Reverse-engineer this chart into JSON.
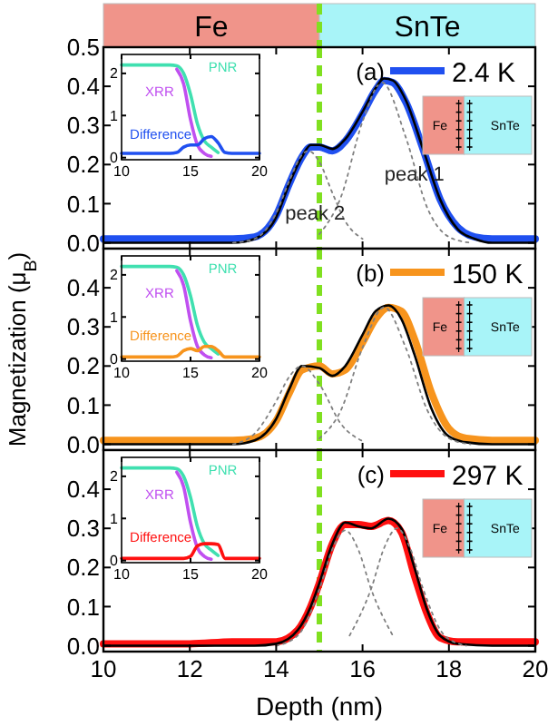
{
  "chart_data": [
    {
      "type": "other",
      "annotations": [
        "Fe",
        "SnTe"
      ]
    },
    {
      "type": "line",
      "annotations": [
        "(a)",
        "peak 1",
        "peak 2"
      ],
      "xlim": [
        10,
        20
      ],
      "xticks": [
        10,
        12,
        14,
        16,
        18,
        20
      ],
      "ylim": [
        -0.015,
        0.5
      ],
      "yticks": [
        {
          "value": 0,
          "label": "0.0"
        },
        {
          "value": 0.1,
          "label": "0.1"
        },
        {
          "value": 0.2,
          "label": "0.2"
        },
        {
          "value": 0.3,
          "label": "0.3"
        },
        {
          "value": 0.4,
          "label": "0.4"
        },
        {
          "value": 0.5,
          "label": "0.5"
        }
      ],
      "tick_labels": "y",
      "legend": "top right",
      "ref_lines": [
        {
          "axis": "x",
          "value": 15,
          "color": "#80e020",
          "line_style": "dashed"
        }
      ],
      "series": [
        {
          "name": "2.4 K",
          "color": "#2050f0",
          "x": [
            10,
            11,
            12,
            13,
            13.5,
            14,
            14.3,
            14.6,
            14.8,
            15,
            15.3,
            15.6,
            16,
            16.3,
            16.5,
            16.7,
            17,
            17.4,
            17.8,
            18.2,
            18.6,
            19,
            20
          ],
          "values": [
            0.01,
            0.01,
            0.01,
            0.01,
            0.015,
            0.07,
            0.15,
            0.22,
            0.245,
            0.245,
            0.235,
            0.26,
            0.33,
            0.39,
            0.415,
            0.41,
            0.36,
            0.24,
            0.11,
            0.04,
            0.015,
            0.01,
            0.01
          ]
        },
        {
          "color": "#000000",
          "x": [
            10,
            11,
            12,
            13,
            13.5,
            14,
            14.3,
            14.6,
            14.8,
            15,
            15.3,
            15.6,
            16,
            16.3,
            16.5,
            16.7,
            17,
            17.4,
            17.8,
            18.2,
            18.6,
            19,
            20
          ],
          "values": [
            0,
            0,
            0,
            0,
            0.01,
            0.065,
            0.15,
            0.22,
            0.25,
            0.25,
            0.24,
            0.265,
            0.335,
            0.395,
            0.42,
            0.415,
            0.365,
            0.24,
            0.11,
            0.035,
            0.01,
            0,
            0
          ]
        },
        {
          "color": "#808080",
          "line_style": "dotted",
          "x": [
            13,
            13.5,
            14,
            14.3,
            14.6,
            14.75,
            15,
            15.3,
            15.6,
            16
          ],
          "values": [
            0,
            0.01,
            0.076,
            0.157,
            0.225,
            0.235,
            0.207,
            0.128,
            0.055,
            0.01
          ]
        },
        {
          "color": "#808080",
          "line_style": "dotted",
          "x": [
            15,
            15.5,
            16,
            16.45,
            17,
            17.5,
            18,
            18.5
          ],
          "values": [
            0.022,
            0.117,
            0.31,
            0.41,
            0.27,
            0.089,
            0.015,
            0
          ]
        }
      ]
    },
    {
      "type": "line",
      "xlim": [
        10,
        20
      ],
      "xticks": [
        10,
        15,
        20
      ],
      "ylim": [
        -0.05,
        2.45
      ],
      "yticks": [
        0,
        1,
        2
      ],
      "series": [
        {
          "name": "PNR",
          "color": "#40e0b0",
          "x": [
            10,
            11,
            12,
            13,
            13.5,
            14,
            14.5,
            15,
            15.5,
            16,
            16.5,
            17
          ],
          "values": [
            2.2,
            2.2,
            2.2,
            2.2,
            2.2,
            2.18,
            2.0,
            1.5,
            0.8,
            0.4,
            0.25,
            0.12
          ]
        },
        {
          "name": "XRR",
          "color": "#c050f0",
          "x": [
            14,
            14.5,
            15,
            15.5,
            16,
            16.5
          ],
          "values": [
            2.1,
            1.75,
            0.9,
            0.3,
            0.1,
            0.03
          ]
        },
        {
          "name": "Difference",
          "color": "#2050f0",
          "x": [
            10,
            11,
            12,
            13,
            13.5,
            14,
            14.5,
            15,
            15.5,
            16,
            16.5,
            17,
            17.5,
            18,
            19,
            20
          ],
          "values": [
            0.1,
            0.1,
            0.1,
            0.1,
            0.1,
            0.12,
            0.25,
            0.3,
            0.3,
            0.45,
            0.5,
            0.35,
            0.12,
            0.1,
            0.1,
            0.1
          ]
        }
      ]
    },
    {
      "type": "other",
      "annotations": [
        "Fe",
        "SnTe"
      ]
    },
    {
      "type": "line",
      "ylabel": "Magnetization (μ$_{B}$)",
      "annotations": [
        "(b)"
      ],
      "xlim": [
        10,
        20
      ],
      "xticks": [
        10,
        12,
        14,
        16,
        18,
        20
      ],
      "ylim": [
        -0.015,
        0.5
      ],
      "yticks": [
        {
          "value": 0,
          "label": "0.0"
        },
        {
          "value": 0.1,
          "label": "0.1"
        },
        {
          "value": 0.2,
          "label": "0.2"
        },
        {
          "value": 0.3,
          "label": "0.3"
        },
        {
          "value": 0.4,
          "label": "0.4"
        }
      ],
      "tick_labels": "y",
      "legend": "top right",
      "ref_lines": [
        {
          "axis": "x",
          "value": 15,
          "color": "#80e020",
          "line_style": "dashed"
        }
      ],
      "series": [
        {
          "name": "150 K",
          "color": "#f7941d",
          "x": [
            10,
            11,
            12,
            13,
            13.5,
            14,
            14.3,
            14.6,
            15,
            15.3,
            15.6,
            16,
            16.3,
            16.6,
            16.9,
            17.2,
            17.6,
            18,
            18.4,
            19,
            20
          ],
          "values": [
            0.01,
            0.01,
            0.01,
            0.01,
            0.015,
            0.06,
            0.13,
            0.19,
            0.2,
            0.18,
            0.19,
            0.26,
            0.32,
            0.35,
            0.34,
            0.27,
            0.13,
            0.04,
            0.015,
            0.01,
            0.01
          ]
        },
        {
          "color": "#000000",
          "x": [
            10,
            11,
            12,
            13,
            13.5,
            14,
            14.3,
            14.6,
            15,
            15.3,
            15.6,
            16,
            16.3,
            16.6,
            16.9,
            17.2,
            17.6,
            18,
            18.4,
            19,
            20
          ],
          "values": [
            0,
            0,
            0,
            0,
            0.01,
            0.065,
            0.14,
            0.2,
            0.195,
            0.175,
            0.2,
            0.28,
            0.34,
            0.355,
            0.32,
            0.23,
            0.09,
            0.02,
            0.005,
            0,
            0
          ]
        },
        {
          "color": "#808080",
          "line_style": "dotted",
          "x": [
            13,
            13.5,
            14,
            14.3,
            14.6,
            15,
            15.5,
            16
          ],
          "values": [
            0,
            0.027,
            0.11,
            0.172,
            0.2,
            0.154,
            0.052,
            0.008
          ]
        },
        {
          "color": "#808080",
          "line_style": "dotted",
          "x": [
            15,
            15.5,
            16,
            16.5,
            17,
            17.5,
            18,
            18.5
          ],
          "values": [
            0.015,
            0.087,
            0.247,
            0.35,
            0.247,
            0.087,
            0.015,
            0
          ]
        }
      ]
    },
    {
      "type": "line",
      "xlim": [
        10,
        20
      ],
      "xticks": [
        10,
        15,
        20
      ],
      "ylim": [
        -0.05,
        2.45
      ],
      "yticks": [
        0,
        1,
        2
      ],
      "series": [
        {
          "name": "PNR",
          "color": "#40e0b0",
          "x": [
            10,
            11,
            12,
            13,
            13.5,
            14,
            14.5,
            15,
            15.5,
            16,
            16.5,
            17
          ],
          "values": [
            2.2,
            2.2,
            2.2,
            2.2,
            2.2,
            2.18,
            2.0,
            1.5,
            0.8,
            0.4,
            0.25,
            0.12
          ]
        },
        {
          "name": "XRR",
          "color": "#c050f0",
          "x": [
            14,
            14.5,
            15,
            15.5,
            16,
            16.5
          ],
          "values": [
            2.1,
            1.75,
            0.9,
            0.3,
            0.1,
            0.03
          ]
        },
        {
          "name": "Difference",
          "color": "#f7941d",
          "x": [
            10,
            11,
            12,
            13,
            13.5,
            14,
            14.5,
            15,
            15.5,
            16,
            16.5,
            17,
            17.5,
            18,
            19,
            20
          ],
          "values": [
            0.05,
            0.05,
            0.05,
            0.05,
            0.05,
            0.07,
            0.2,
            0.25,
            0.2,
            0.3,
            0.3,
            0.2,
            0.05,
            0.05,
            0.05,
            0.05
          ]
        }
      ]
    },
    {
      "type": "other",
      "annotations": [
        "Fe",
        "SnTe"
      ]
    },
    {
      "type": "line",
      "xlabel": "Depth (nm)",
      "annotations": [
        "(c)"
      ],
      "xlim": [
        10,
        20
      ],
      "xticks": [
        10,
        12,
        14,
        16,
        18,
        20
      ],
      "ylim": [
        -0.015,
        0.5
      ],
      "yticks": [
        {
          "value": 0,
          "label": "0.0"
        },
        {
          "value": 0.1,
          "label": "0.1"
        },
        {
          "value": 0.2,
          "label": "0.2"
        },
        {
          "value": 0.3,
          "label": "0.3"
        },
        {
          "value": 0.4,
          "label": "0.4"
        }
      ],
      "legend": "top right",
      "ref_lines": [
        {
          "axis": "x",
          "value": 15,
          "color": "#80e020",
          "line_style": "dashed"
        }
      ],
      "series": [
        {
          "name": "297 K",
          "color": "#ff1010",
          "x": [
            10,
            12,
            13,
            13.5,
            14,
            14.5,
            14.8,
            15,
            15.3,
            15.6,
            15.9,
            16.2,
            16.6,
            16.9,
            17.2,
            17.5,
            17.8,
            18.2,
            19,
            20
          ],
          "values": [
            0.005,
            0.005,
            0.01,
            0.01,
            0.01,
            0.04,
            0.1,
            0.16,
            0.26,
            0.31,
            0.31,
            0.305,
            0.32,
            0.29,
            0.18,
            0.08,
            0.02,
            0.01,
            0.01,
            0.01
          ]
        },
        {
          "color": "#000000",
          "x": [
            10,
            12,
            13,
            13.5,
            14,
            14.5,
            14.8,
            15,
            15.3,
            15.6,
            15.9,
            16.2,
            16.6,
            16.9,
            17.2,
            17.5,
            17.8,
            18.2,
            19,
            20
          ],
          "values": [
            0,
            0,
            0,
            0,
            0.005,
            0.04,
            0.1,
            0.16,
            0.26,
            0.315,
            0.305,
            0.3,
            0.325,
            0.3,
            0.2,
            0.09,
            0.025,
            0.005,
            0,
            0
          ]
        },
        {
          "color": "#808080",
          "line_style": "dotted",
          "x": [
            14,
            14.5,
            15,
            15.3,
            15.6,
            15.9,
            16.2,
            16.7
          ],
          "values": [
            0,
            0.026,
            0.144,
            0.246,
            0.295,
            0.246,
            0.144,
            0.026
          ]
        },
        {
          "color": "#808080",
          "line_style": "dotted",
          "x": [
            15.7,
            16.2,
            16.5,
            16.8,
            17.1,
            17.4,
            17.9,
            18.4
          ],
          "values": [
            0.026,
            0.146,
            0.25,
            0.3,
            0.25,
            0.146,
            0.026,
            0
          ]
        }
      ]
    },
    {
      "type": "line",
      "xlim": [
        10,
        20
      ],
      "xticks": [
        10,
        15,
        20
      ],
      "ylim": [
        -0.05,
        2.45
      ],
      "yticks": [
        0,
        1,
        2
      ],
      "series": [
        {
          "name": "PNR",
          "color": "#40e0b0",
          "x": [
            10,
            11,
            12,
            13,
            13.5,
            14,
            14.5,
            15,
            15.5,
            16,
            16.5,
            17
          ],
          "values": [
            2.2,
            2.2,
            2.2,
            2.2,
            2.2,
            2.18,
            2.0,
            1.5,
            0.8,
            0.4,
            0.25,
            0.12
          ]
        },
        {
          "name": "XRR",
          "color": "#c050f0",
          "x": [
            14,
            14.5,
            15,
            15.5,
            16,
            16.5
          ],
          "values": [
            2.1,
            1.75,
            0.9,
            0.3,
            0.1,
            0.03
          ]
        },
        {
          "name": "Difference",
          "color": "#ff1010",
          "x": [
            10,
            11,
            12,
            13,
            13.5,
            14,
            14.5,
            15,
            15.5,
            16,
            16.5,
            17,
            17.5,
            18,
            19,
            20
          ],
          "values": [
            0.05,
            0.05,
            0.05,
            0.05,
            0.05,
            0.05,
            0.05,
            0.1,
            0.35,
            0.4,
            0.4,
            0.38,
            0.05,
            0.05,
            0.05,
            0.05
          ]
        }
      ]
    },
    {
      "type": "other",
      "annotations": [
        "Fe",
        "SnTe"
      ]
    }
  ]
}
